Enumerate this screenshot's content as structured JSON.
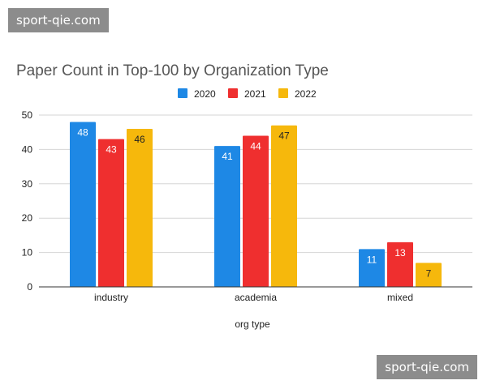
{
  "watermarks": {
    "top": "sport-qie.com",
    "bottom": "sport-qie.com"
  },
  "chart_data": {
    "type": "bar",
    "title": "Paper Count in Top-100 by Organization Type",
    "xlabel": "org type",
    "ylabel": "",
    "ylim": [
      0,
      50
    ],
    "yticks": [
      0,
      10,
      20,
      30,
      40,
      50
    ],
    "grid": true,
    "legend_position": "top",
    "categories": [
      "industry",
      "academia",
      "mixed"
    ],
    "series": [
      {
        "name": "2020",
        "color": "#1e88e5",
        "label_color": "#ffffff",
        "values": [
          48,
          41,
          11
        ]
      },
      {
        "name": "2021",
        "color": "#ef2f2f",
        "label_color": "#ffffff",
        "values": [
          43,
          44,
          13
        ]
      },
      {
        "name": "2022",
        "color": "#f6b80c",
        "label_color": "#222222",
        "values": [
          46,
          47,
          7
        ]
      }
    ]
  }
}
